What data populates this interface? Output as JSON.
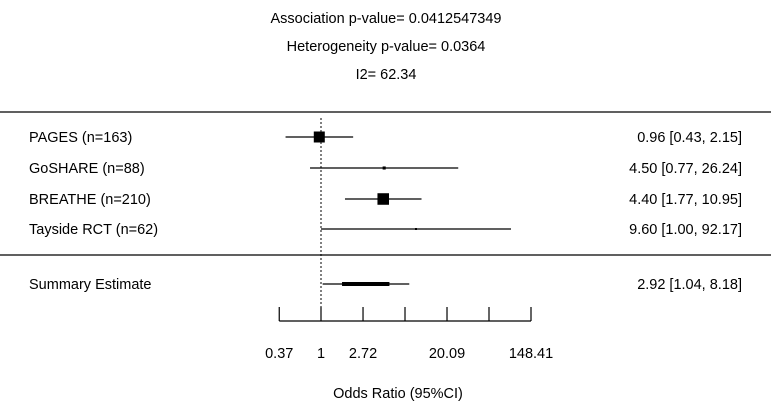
{
  "chart_data": {
    "type": "forest",
    "stats": [
      "Association p-value= 0.0412547349",
      "Heterogeneity p-value= 0.0364",
      "I2= 62.34"
    ],
    "xlabel": "Odds Ratio (95%CI)",
    "scale": "log",
    "xlim": [
      0.37,
      148.41
    ],
    "reference_line": 1,
    "ticks": [
      {
        "value": 0.37,
        "label": "0.37"
      },
      {
        "value": 1,
        "label": "1"
      },
      {
        "value": 2.72,
        "label": "2.72"
      },
      {
        "value": 7.39,
        "label": ""
      },
      {
        "value": 20.09,
        "label": "20.09"
      },
      {
        "value": 54.6,
        "label": ""
      },
      {
        "value": 148.41,
        "label": "148.41"
      }
    ],
    "studies": [
      {
        "label": "PAGES (n=163)",
        "or": 0.96,
        "lo": 0.43,
        "hi": 2.15,
        "text": "0.96 [0.43,  2.15]",
        "weight": 1.0
      },
      {
        "label": "GoSHARE (n=88)",
        "or": 4.5,
        "lo": 0.77,
        "hi": 26.24,
        "text": "4.50 [0.77, 26.24]",
        "weight": 0.28
      },
      {
        "label": "BREATHE (n=210)",
        "or": 4.4,
        "lo": 1.77,
        "hi": 10.95,
        "text": "4.40 [1.77, 10.95]",
        "weight": 1.05
      },
      {
        "label": "Tayside RCT (n=62)",
        "or": 9.6,
        "lo": 1.0,
        "hi": 92.17,
        "text": "9.60 [1.00, 92.17]",
        "weight": 0.1
      }
    ],
    "summary": {
      "label": "Summary Estimate",
      "or": 2.92,
      "lo": 1.04,
      "hi": 8.18,
      "text": "2.92 [1.04,  8.18]"
    }
  }
}
